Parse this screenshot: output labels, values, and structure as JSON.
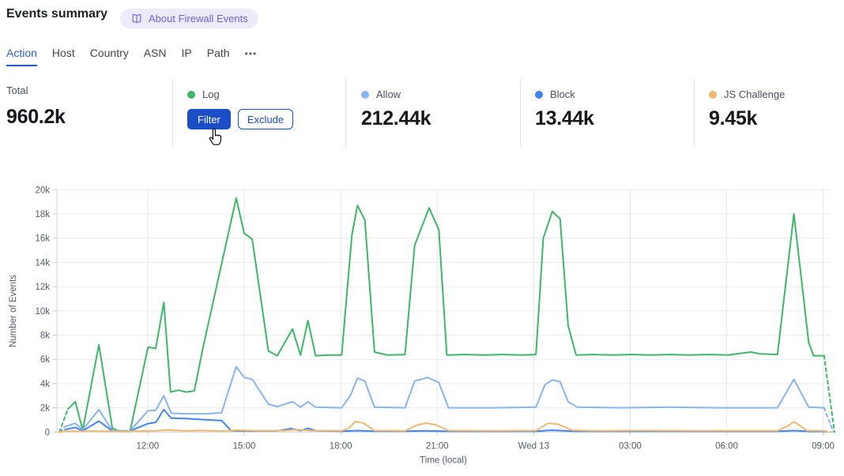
{
  "header": {
    "title": "Events summary",
    "about_badge": "About Firewall Events"
  },
  "tabs": {
    "items": [
      {
        "label": "Action",
        "active": true
      },
      {
        "label": "Host",
        "active": false
      },
      {
        "label": "Country",
        "active": false
      },
      {
        "label": "ASN",
        "active": false
      },
      {
        "label": "IP",
        "active": false
      },
      {
        "label": "Path",
        "active": false
      }
    ],
    "more_label": "•••"
  },
  "stats": {
    "total": {
      "label": "Total",
      "value": "960.2k"
    },
    "cards": [
      {
        "label": "Log",
        "color": "#3eb768",
        "filter_label": "Filter",
        "exclude_label": "Exclude"
      },
      {
        "label": "Allow",
        "color": "#89b4f2",
        "value": "212.44k"
      },
      {
        "label": "Block",
        "color": "#4285ee",
        "value": "13.44k"
      },
      {
        "label": "JS Challenge",
        "color": "#f1b96f",
        "value": "9.45k"
      }
    ]
  },
  "chart_data": {
    "type": "line",
    "xlabel": "Time (local)",
    "ylabel": "Number of Events",
    "values_unit": "thousands of events",
    "ylim": [
      0,
      20
    ],
    "x_hours_range": [
      0,
      24.1
    ],
    "grid": true,
    "y_ticks": [
      {
        "v": 0,
        "label": "0"
      },
      {
        "v": 2,
        "label": "2k"
      },
      {
        "v": 4,
        "label": "4k"
      },
      {
        "v": 6,
        "label": "6k"
      },
      {
        "v": 8,
        "label": "8k"
      },
      {
        "v": 10,
        "label": "10k"
      },
      {
        "v": 12,
        "label": "12k"
      },
      {
        "v": 14,
        "label": "14k"
      },
      {
        "v": 16,
        "label": "16k"
      },
      {
        "v": 18,
        "label": "18k"
      },
      {
        "v": 20,
        "label": "20k"
      }
    ],
    "x_ticks": [
      {
        "t": 2.75,
        "label": "12:00"
      },
      {
        "t": 5.75,
        "label": "15:00"
      },
      {
        "t": 8.75,
        "label": "18:00"
      },
      {
        "t": 11.75,
        "label": "21:00"
      },
      {
        "t": 14.75,
        "label": "Wed 13"
      },
      {
        "t": 17.75,
        "label": "03:00"
      },
      {
        "t": 20.75,
        "label": "06:00"
      },
      {
        "t": 23.75,
        "label": "09:00"
      }
    ],
    "series": [
      {
        "name": "Log",
        "color": "#3eb768",
        "dash_head": [
          [
            0,
            0
          ],
          [
            0.27,
            1.9
          ]
        ],
        "points": [
          [
            0.27,
            1.9
          ],
          [
            0.5,
            2.5
          ],
          [
            0.73,
            0.15
          ],
          [
            1.23,
            7.2
          ],
          [
            1.65,
            0.3
          ],
          [
            1.9,
            0.05
          ],
          [
            2.2,
            0.05
          ],
          [
            2.76,
            7.0
          ],
          [
            3.0,
            6.9
          ],
          [
            3.25,
            10.7
          ],
          [
            3.46,
            3.3
          ],
          [
            3.7,
            3.45
          ],
          [
            3.95,
            3.3
          ],
          [
            4.2,
            3.4
          ],
          [
            4.48,
            7.1
          ],
          [
            5.5,
            19.3
          ],
          [
            5.75,
            16.4
          ],
          [
            6.0,
            15.9
          ],
          [
            6.5,
            6.7
          ],
          [
            6.78,
            6.3
          ],
          [
            7.25,
            8.5
          ],
          [
            7.5,
            6.35
          ],
          [
            7.73,
            9.2
          ],
          [
            7.97,
            6.3
          ],
          [
            8.4,
            6.35
          ],
          [
            8.78,
            6.35
          ],
          [
            9.1,
            16.3
          ],
          [
            9.27,
            18.7
          ],
          [
            9.5,
            17.5
          ],
          [
            9.8,
            6.6
          ],
          [
            10.2,
            6.35
          ],
          [
            10.75,
            6.4
          ],
          [
            11.05,
            15.4
          ],
          [
            11.5,
            18.5
          ],
          [
            11.8,
            16.7
          ],
          [
            12.05,
            6.35
          ],
          [
            12.6,
            6.4
          ],
          [
            13.2,
            6.35
          ],
          [
            13.8,
            6.4
          ],
          [
            14.4,
            6.35
          ],
          [
            14.82,
            6.4
          ],
          [
            15.05,
            16.0
          ],
          [
            15.33,
            18.2
          ],
          [
            15.57,
            17.6
          ],
          [
            15.82,
            8.8
          ],
          [
            16.07,
            6.35
          ],
          [
            16.6,
            6.4
          ],
          [
            17.2,
            6.35
          ],
          [
            17.8,
            6.4
          ],
          [
            18.4,
            6.35
          ],
          [
            19.0,
            6.4
          ],
          [
            19.6,
            6.35
          ],
          [
            20.2,
            6.4
          ],
          [
            20.8,
            6.35
          ],
          [
            21.2,
            6.5
          ],
          [
            21.5,
            6.6
          ],
          [
            21.8,
            6.45
          ],
          [
            22.33,
            6.4
          ],
          [
            22.84,
            18.0
          ],
          [
            23.3,
            7.4
          ],
          [
            23.45,
            6.3
          ],
          [
            23.78,
            6.3
          ]
        ],
        "dash_tail": [
          [
            23.78,
            6.3
          ],
          [
            24.1,
            0
          ]
        ]
      },
      {
        "name": "Allow",
        "color": "#89b4f2",
        "dash_head": [
          [
            0,
            0
          ],
          [
            0.18,
            0.45
          ]
        ],
        "points": [
          [
            0.18,
            0.45
          ],
          [
            0.5,
            0.72
          ],
          [
            0.73,
            0.18
          ],
          [
            1.23,
            1.85
          ],
          [
            1.65,
            0.12
          ],
          [
            2.2,
            0.1
          ],
          [
            2.76,
            1.75
          ],
          [
            3.0,
            1.8
          ],
          [
            3.25,
            3.0
          ],
          [
            3.48,
            1.55
          ],
          [
            4.0,
            1.5
          ],
          [
            4.6,
            1.5
          ],
          [
            5.05,
            1.6
          ],
          [
            5.5,
            5.4
          ],
          [
            5.75,
            4.5
          ],
          [
            6.0,
            4.35
          ],
          [
            6.5,
            2.3
          ],
          [
            6.78,
            2.1
          ],
          [
            7.25,
            2.5
          ],
          [
            7.5,
            2.05
          ],
          [
            7.73,
            2.5
          ],
          [
            7.97,
            2.05
          ],
          [
            8.78,
            2.0
          ],
          [
            9.05,
            3.0
          ],
          [
            9.27,
            4.45
          ],
          [
            9.5,
            4.2
          ],
          [
            9.8,
            2.05
          ],
          [
            10.75,
            2.0
          ],
          [
            11.05,
            4.2
          ],
          [
            11.45,
            4.5
          ],
          [
            11.8,
            4.1
          ],
          [
            12.1,
            2.0
          ],
          [
            13.5,
            2.0
          ],
          [
            14.82,
            2.05
          ],
          [
            15.1,
            3.9
          ],
          [
            15.33,
            4.3
          ],
          [
            15.57,
            4.15
          ],
          [
            15.82,
            2.5
          ],
          [
            16.1,
            2.05
          ],
          [
            17.5,
            2.0
          ],
          [
            19.0,
            2.05
          ],
          [
            20.5,
            2.0
          ],
          [
            22.33,
            2.0
          ],
          [
            22.84,
            4.35
          ],
          [
            23.3,
            2.05
          ],
          [
            23.78,
            2.0
          ]
        ],
        "dash_tail": [
          [
            23.78,
            2.0
          ],
          [
            24.07,
            0
          ]
        ]
      },
      {
        "name": "Block",
        "color": "#4285ee",
        "dash_head": [
          [
            0,
            0
          ],
          [
            0.18,
            0.2
          ]
        ],
        "points": [
          [
            0.18,
            0.2
          ],
          [
            0.5,
            0.38
          ],
          [
            0.73,
            0.1
          ],
          [
            1.23,
            0.9
          ],
          [
            1.65,
            0.08
          ],
          [
            2.2,
            0.08
          ],
          [
            2.76,
            0.7
          ],
          [
            3.0,
            0.8
          ],
          [
            3.25,
            1.85
          ],
          [
            3.48,
            1.15
          ],
          [
            4.0,
            1.1
          ],
          [
            4.6,
            1.0
          ],
          [
            5.05,
            0.95
          ],
          [
            5.35,
            0.1
          ],
          [
            6.0,
            0.08
          ],
          [
            6.8,
            0.1
          ],
          [
            7.2,
            0.28
          ],
          [
            7.5,
            0.12
          ],
          [
            7.73,
            0.3
          ],
          [
            8.0,
            0.1
          ],
          [
            8.78,
            0.07
          ],
          [
            9.3,
            0.12
          ],
          [
            9.8,
            0.07
          ],
          [
            10.75,
            0.07
          ],
          [
            11.3,
            0.1
          ],
          [
            12.1,
            0.06
          ],
          [
            13.5,
            0.06
          ],
          [
            14.82,
            0.06
          ],
          [
            15.3,
            0.15
          ],
          [
            16.1,
            0.06
          ],
          [
            18.0,
            0.06
          ],
          [
            20.0,
            0.06
          ],
          [
            22.33,
            0.06
          ],
          [
            22.84,
            0.12
          ],
          [
            23.3,
            0.05
          ],
          [
            23.78,
            0.05
          ]
        ],
        "dash_tail": [
          [
            23.78,
            0.05
          ],
          [
            24.0,
            0
          ]
        ]
      },
      {
        "name": "JS Challenge",
        "color": "#f1b96f",
        "dash_head": [
          [
            0,
            0
          ],
          [
            0.15,
            0.06
          ]
        ],
        "points": [
          [
            0.15,
            0.06
          ],
          [
            1.0,
            0.08
          ],
          [
            2.0,
            0.06
          ],
          [
            3.0,
            0.1
          ],
          [
            3.3,
            0.16
          ],
          [
            4.0,
            0.1
          ],
          [
            4.45,
            0.14
          ],
          [
            5.0,
            0.08
          ],
          [
            5.5,
            0.15
          ],
          [
            6.2,
            0.1
          ],
          [
            7.0,
            0.12
          ],
          [
            7.4,
            0.2
          ],
          [
            7.8,
            0.12
          ],
          [
            8.78,
            0.1
          ],
          [
            9.0,
            0.3
          ],
          [
            9.2,
            0.87
          ],
          [
            9.45,
            0.75
          ],
          [
            9.8,
            0.12
          ],
          [
            10.75,
            0.1
          ],
          [
            11.1,
            0.55
          ],
          [
            11.4,
            0.74
          ],
          [
            11.7,
            0.6
          ],
          [
            12.1,
            0.12
          ],
          [
            13.5,
            0.1
          ],
          [
            14.82,
            0.12
          ],
          [
            15.2,
            0.72
          ],
          [
            15.5,
            0.65
          ],
          [
            15.95,
            0.15
          ],
          [
            16.6,
            0.1
          ],
          [
            18.0,
            0.12
          ],
          [
            20.0,
            0.1
          ],
          [
            22.33,
            0.1
          ],
          [
            22.65,
            0.5
          ],
          [
            22.84,
            0.85
          ],
          [
            23.25,
            0.12
          ],
          [
            23.78,
            0.1
          ]
        ],
        "dash_tail": [
          [
            23.78,
            0.1
          ],
          [
            24.0,
            0
          ]
        ]
      }
    ]
  }
}
